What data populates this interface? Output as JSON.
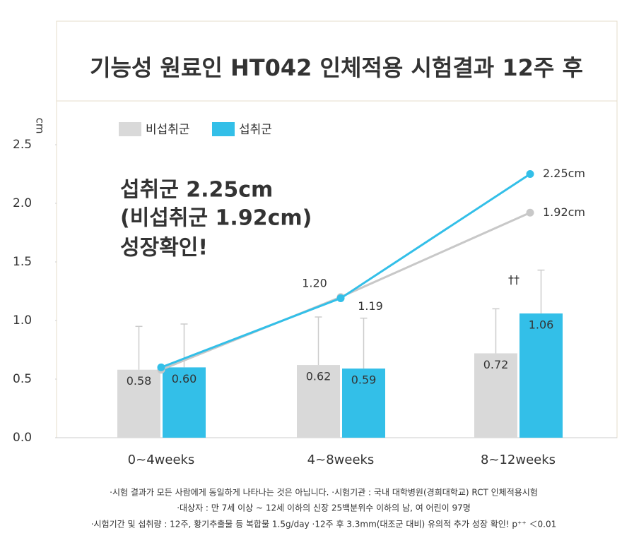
{
  "chart_data": {
    "type": "bar",
    "title": "기능성 원료인 HT042 인체적용 시험결과 12주 후",
    "y_label": "cm",
    "categories": [
      "0~4weeks",
      "4~8weeks",
      "8~12weeks"
    ],
    "ylim": [
      0,
      2.5
    ],
    "yticks": [
      {
        "value": 0,
        "label": "0.0"
      },
      {
        "value": 0.5,
        "label": "0.5"
      },
      {
        "value": 1,
        "label": "1.0"
      },
      {
        "value": 1.5,
        "label": "1.5"
      },
      {
        "value": 2,
        "label": "2.0"
      },
      {
        "value": 2.5,
        "label": "2.5"
      }
    ],
    "series": [
      {
        "name": "비섭취군",
        "type": "bar",
        "color": "#d9d9d9",
        "values": [
          0.58,
          0.62,
          0.72
        ],
        "value_labels": [
          "0.58",
          "0.62",
          "0.72"
        ],
        "errors": [
          0.37,
          0.41,
          0.38
        ]
      },
      {
        "name": "섭취군",
        "type": "bar",
        "color": "#33bfe8",
        "values": [
          0.6,
          0.59,
          1.06
        ],
        "value_labels": [
          "0.60",
          "0.59",
          "1.06"
        ],
        "errors": [
          0.37,
          0.43,
          0.37
        ]
      },
      {
        "name": "비섭취군",
        "type": "line",
        "color": "#c8c8c8",
        "values": [
          0.58,
          1.2,
          1.92
        ],
        "value_labels": [
          null,
          "1.20",
          "1.92cm"
        ]
      },
      {
        "name": "섭취군",
        "type": "line",
        "color": "#33bfe8",
        "values": [
          0.6,
          1.19,
          2.25
        ],
        "value_labels": [
          null,
          "1.19",
          "2.25cm"
        ]
      }
    ],
    "significance": "††",
    "callout": [
      "섭취군 2.25cm",
      "(비섭취군 1.92cm)",
      "성장확인!"
    ],
    "footnotes": [
      "·시험 결과가 모든 사람에게 동일하게 나타나는 것은 아닙니다. ·시험기관 : 국내 대학병원(경희대학교) RCT 인체적용시험",
      "·대상자 : 만 7세 이상 ~ 12세 이하의 신장 25백분위수 이하의 남, 여 어린이 97명",
      "·시험기간 및 섭취량 : 12주, 황기추출물 등 복합물 1.5g/day ·12주 후 3.3mm(대조군 대비) 유의적 추가 성장 확인! p⁺⁺ ＜0.01"
    ]
  }
}
